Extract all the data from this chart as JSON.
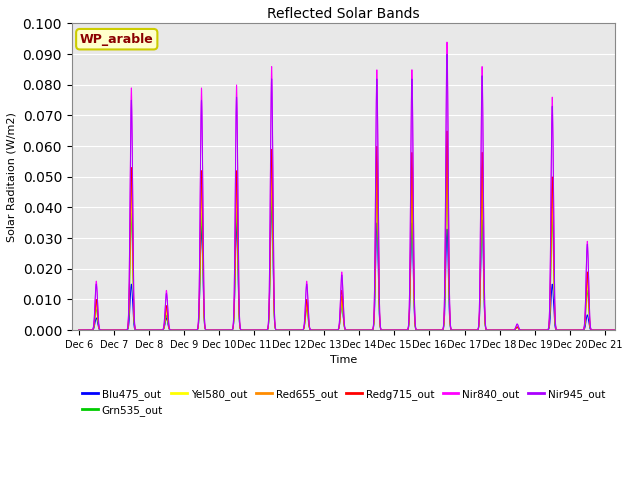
{
  "title": "Reflected Solar Bands",
  "xlabel": "Time",
  "ylabel": "Solar Raditaion (W/m2)",
  "ylim": [
    0,
    0.1
  ],
  "yticks": [
    0.0,
    0.01,
    0.02,
    0.03,
    0.04,
    0.05,
    0.06,
    0.07,
    0.08,
    0.09,
    0.1
  ],
  "annotation_text": "WP_arable",
  "annotation_color": "#8B0000",
  "annotation_bg": "#FFFFCC",
  "annotation_border": "#CCCC00",
  "background_color": "#E8E8E8",
  "series": [
    {
      "label": "Blu475_out",
      "color": "#0000FF"
    },
    {
      "label": "Grn535_out",
      "color": "#00CC00"
    },
    {
      "label": "Yel580_out",
      "color": "#FFFF00"
    },
    {
      "label": "Red655_out",
      "color": "#FF8C00"
    },
    {
      "label": "Redg715_out",
      "color": "#FF0000"
    },
    {
      "label": "Nir840_out",
      "color": "#FF00FF"
    },
    {
      "label": "Nir945_out",
      "color": "#AA00FF"
    }
  ],
  "n_days": 16,
  "points_per_day": 288,
  "xtick_labels": [
    "Dec 6",
    "Dec 7",
    "Dec 8",
    "Dec 9",
    "Dec 10",
    "Dec 11",
    "Dec 12",
    "Dec 13",
    "Dec 14",
    "Dec 15",
    "Dec 16",
    "Dec 17",
    "Dec 18",
    "Dec 19",
    "Dec 20",
    "Dec 21"
  ],
  "nir840_peaks": [
    0.016,
    0.079,
    0.013,
    0.079,
    0.08,
    0.086,
    0.016,
    0.019,
    0.085,
    0.085,
    0.094,
    0.086,
    0.002,
    0.076,
    0.029,
    0.001
  ],
  "nir945_peaks": [
    0.015,
    0.075,
    0.012,
    0.075,
    0.076,
    0.082,
    0.015,
    0.018,
    0.082,
    0.082,
    0.09,
    0.083,
    0.002,
    0.073,
    0.028,
    0.001
  ],
  "redg715_peaks": [
    0.01,
    0.053,
    0.008,
    0.052,
    0.052,
    0.059,
    0.01,
    0.013,
    0.06,
    0.058,
    0.065,
    0.058,
    0.001,
    0.05,
    0.019,
    0.001
  ],
  "red655_peaks": [
    0.009,
    0.048,
    0.007,
    0.047,
    0.048,
    0.054,
    0.009,
    0.011,
    0.055,
    0.053,
    0.06,
    0.053,
    0.001,
    0.046,
    0.017,
    0.001
  ],
  "yel580_peaks": [
    0.008,
    0.043,
    0.006,
    0.043,
    0.044,
    0.049,
    0.008,
    0.01,
    0.05,
    0.048,
    0.055,
    0.049,
    0.001,
    0.042,
    0.015,
    0.001
  ],
  "grn535_peaks": [
    0.007,
    0.038,
    0.005,
    0.038,
    0.039,
    0.044,
    0.007,
    0.009,
    0.045,
    0.043,
    0.05,
    0.044,
    0.001,
    0.037,
    0.013,
    0.001
  ],
  "blu475_peaks": [
    0.004,
    0.015,
    0.004,
    0.034,
    0.035,
    0.042,
    0.009,
    0.009,
    0.035,
    0.035,
    0.033,
    0.036,
    0.001,
    0.015,
    0.005,
    0.001
  ],
  "peak_spread": 0.035,
  "figsize": [
    6.4,
    4.8
  ],
  "dpi": 100
}
